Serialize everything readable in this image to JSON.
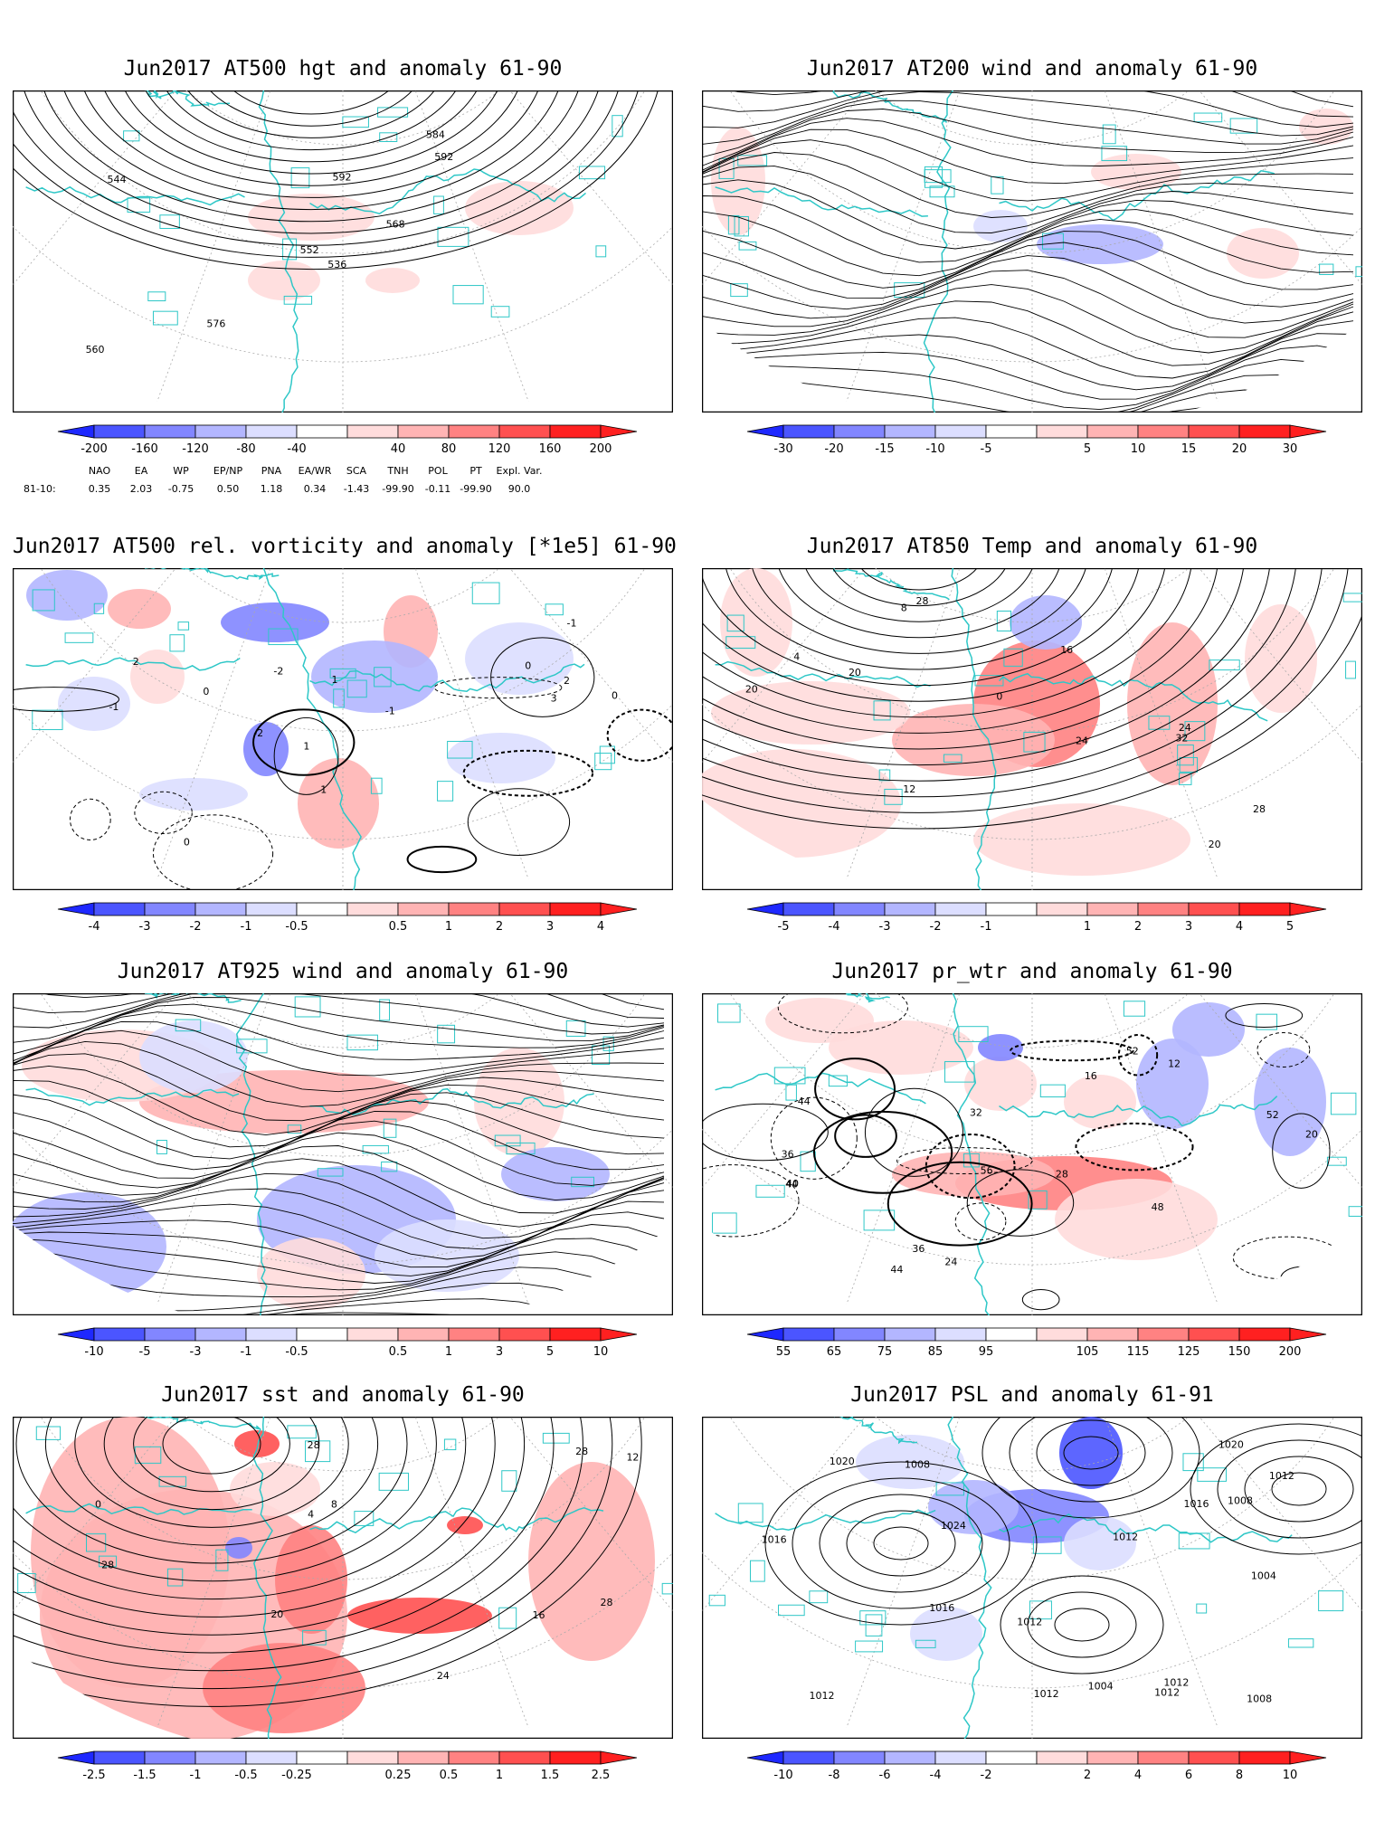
{
  "palette": {
    "blue": [
      "#1e28ff",
      "#4b55ff",
      "#8286ff",
      "#b3b6ff",
      "#dcdeff"
    ],
    "red": [
      "#ffdcdc",
      "#ffb4b4",
      "#ff8282",
      "#ff5050",
      "#ff2020"
    ],
    "coast": "#2ec7c7",
    "contour": "#000000"
  },
  "panels": [
    {
      "id": "p1",
      "title": "Jun2017 AT500 hgt and anomaly 61-90",
      "labels": [
        "536",
        "544",
        "552",
        "560",
        "568",
        "576",
        "584",
        "592",
        "592"
      ],
      "colorbar": [
        "-200",
        "-160",
        "-120",
        "-80",
        "-40",
        "40",
        "80",
        "120",
        "160",
        "200"
      ],
      "style": "hgt"
    },
    {
      "id": "p2",
      "title": "Jun2017 AT200 wind and anomaly 61-90",
      "labels": [],
      "colorbar": [
        "-30",
        "-20",
        "-15",
        "-10",
        "-5",
        "5",
        "10",
        "15",
        "20",
        "30"
      ],
      "style": "wind"
    },
    {
      "id": "p3",
      "title": "Jun2017 AT500 rel. vorticity and anomaly [*1e5] 61-90",
      "labels": [
        "0",
        "1",
        "-1",
        "2",
        "-2",
        "1",
        "0",
        "-1",
        "2",
        "-2",
        "0",
        "1",
        "-1",
        "3",
        "0"
      ],
      "colorbar": [
        "-4",
        "-3",
        "-2",
        "-1",
        "-0.5",
        "0.5",
        "1",
        "2",
        "3",
        "4"
      ],
      "style": "vort"
    },
    {
      "id": "p4",
      "title": "Jun2017 AT850 Temp and anomaly 61-90",
      "labels": [
        "20",
        "4",
        "0",
        "8",
        "12",
        "16",
        "20",
        "24",
        "28",
        "32",
        "28",
        "24",
        "20"
      ],
      "colorbar": [
        "-5",
        "-4",
        "-3",
        "-2",
        "-1",
        "1",
        "2",
        "3",
        "4",
        "5"
      ],
      "style": "temp"
    },
    {
      "id": "p5",
      "title": "Jun2017 AT925 wind and anomaly 61-90",
      "labels": [],
      "colorbar": [
        "-10",
        "-5",
        "-3",
        "-1",
        "-0.5",
        "0.5",
        "1",
        "3",
        "5",
        "10"
      ],
      "style": "wind925"
    },
    {
      "id": "p6",
      "title": "Jun2017 pr_wtr and anomaly 61-90",
      "labels": [
        "52",
        "56",
        "44",
        "36",
        "40",
        "12",
        "16",
        "20",
        "24",
        "28",
        "32",
        "36",
        "44",
        "48",
        "52",
        "44"
      ],
      "colorbar": [
        "55",
        "65",
        "75",
        "85",
        "95",
        "105",
        "115",
        "125",
        "150",
        "200"
      ],
      "style": "prwtr"
    },
    {
      "id": "p7",
      "title": "Jun2017 sst and anomaly 61-90",
      "labels": [
        "28",
        "0",
        "4",
        "8",
        "12",
        "16",
        "20",
        "24",
        "28",
        "28",
        "28"
      ],
      "colorbar": [
        "-2.5",
        "-1.5",
        "-1",
        "-0.5",
        "-0.25",
        "0.25",
        "0.5",
        "1",
        "1.5",
        "2.5"
      ],
      "style": "sst"
    },
    {
      "id": "p8",
      "title": "Jun2017 PSL and anomaly 61-91",
      "labels": [
        "1012",
        "1012",
        "1016",
        "1008",
        "1004",
        "1012",
        "1020",
        "1024",
        "1020",
        "1016",
        "1012",
        "1008",
        "1012",
        "1004",
        "1008",
        "1012",
        "1016",
        "1012"
      ],
      "colorbar": [
        "-10",
        "-8",
        "-6",
        "-4",
        "-2",
        "2",
        "4",
        "6",
        "8",
        "10"
      ],
      "style": "psl"
    }
  ],
  "indices": {
    "headers": [
      "NAO",
      "EA",
      "WP",
      "EP/NP",
      "PNA",
      "EA/WR",
      "SCA",
      "TNH",
      "POL",
      "PT",
      "Expl. Var."
    ],
    "row_label": "81-10:",
    "values": [
      "0.35",
      "2.03",
      "-0.75",
      "0.50",
      "1.18",
      "0.34",
      "-1.43",
      "-99.90",
      "-0.11",
      "-99.90",
      "90.0"
    ]
  }
}
